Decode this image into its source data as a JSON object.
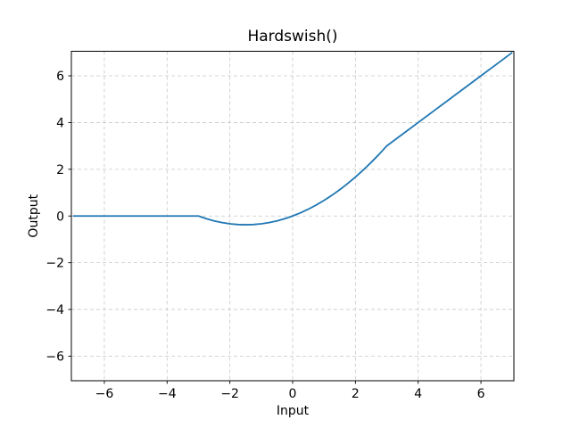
{
  "figure": {
    "title": "Hardswish()",
    "xlabel": "Input",
    "ylabel": "Output"
  },
  "chart_data": {
    "type": "line",
    "title": "Hardswish()",
    "xlabel": "Input",
    "ylabel": "Output",
    "xlim": [
      -7.05,
      7.05
    ],
    "ylim": [
      -7.05,
      7.05
    ],
    "xticks": [
      -6,
      -4,
      -2,
      0,
      2,
      4,
      6
    ],
    "yticks": [
      -6,
      -4,
      -2,
      0,
      2,
      4,
      6
    ],
    "grid": true,
    "grid_style": "dashed",
    "grid_color": "#c8c8c8",
    "line_color": "#1f77b4",
    "line_width": 1.8,
    "background": "#ffffff",
    "legend": "none",
    "series": [
      {
        "name": "Hardswish",
        "points": [
          [
            -7,
            0
          ],
          [
            -6.5,
            0
          ],
          [
            -6,
            0
          ],
          [
            -5.5,
            0
          ],
          [
            -5,
            0
          ],
          [
            -4.5,
            0
          ],
          [
            -4,
            0
          ],
          [
            -3.5,
            0
          ],
          [
            -3,
            0
          ],
          [
            -2.75,
            -0.1146
          ],
          [
            -2.5,
            -0.2083
          ],
          [
            -2.25,
            -0.2813
          ],
          [
            -2,
            -0.3333
          ],
          [
            -1.75,
            -0.3646
          ],
          [
            -1.5,
            -0.375
          ],
          [
            -1.25,
            -0.3646
          ],
          [
            -1,
            -0.3333
          ],
          [
            -0.75,
            -0.2813
          ],
          [
            -0.5,
            -0.2083
          ],
          [
            -0.25,
            -0.1146
          ],
          [
            0,
            0
          ],
          [
            0.25,
            0.1354
          ],
          [
            0.5,
            0.2917
          ],
          [
            0.75,
            0.4688
          ],
          [
            1,
            0.6667
          ],
          [
            1.25,
            0.8854
          ],
          [
            1.5,
            1.125
          ],
          [
            1.75,
            1.3854
          ],
          [
            2,
            1.6667
          ],
          [
            2.25,
            1.9688
          ],
          [
            2.5,
            2.2917
          ],
          [
            2.75,
            2.6354
          ],
          [
            3,
            3
          ],
          [
            3.5,
            3.5
          ],
          [
            4,
            4
          ],
          [
            4.5,
            4.5
          ],
          [
            5,
            5
          ],
          [
            5.5,
            5.5
          ],
          [
            6,
            6
          ],
          [
            6.5,
            6.5
          ],
          [
            7,
            7
          ]
        ]
      }
    ]
  }
}
